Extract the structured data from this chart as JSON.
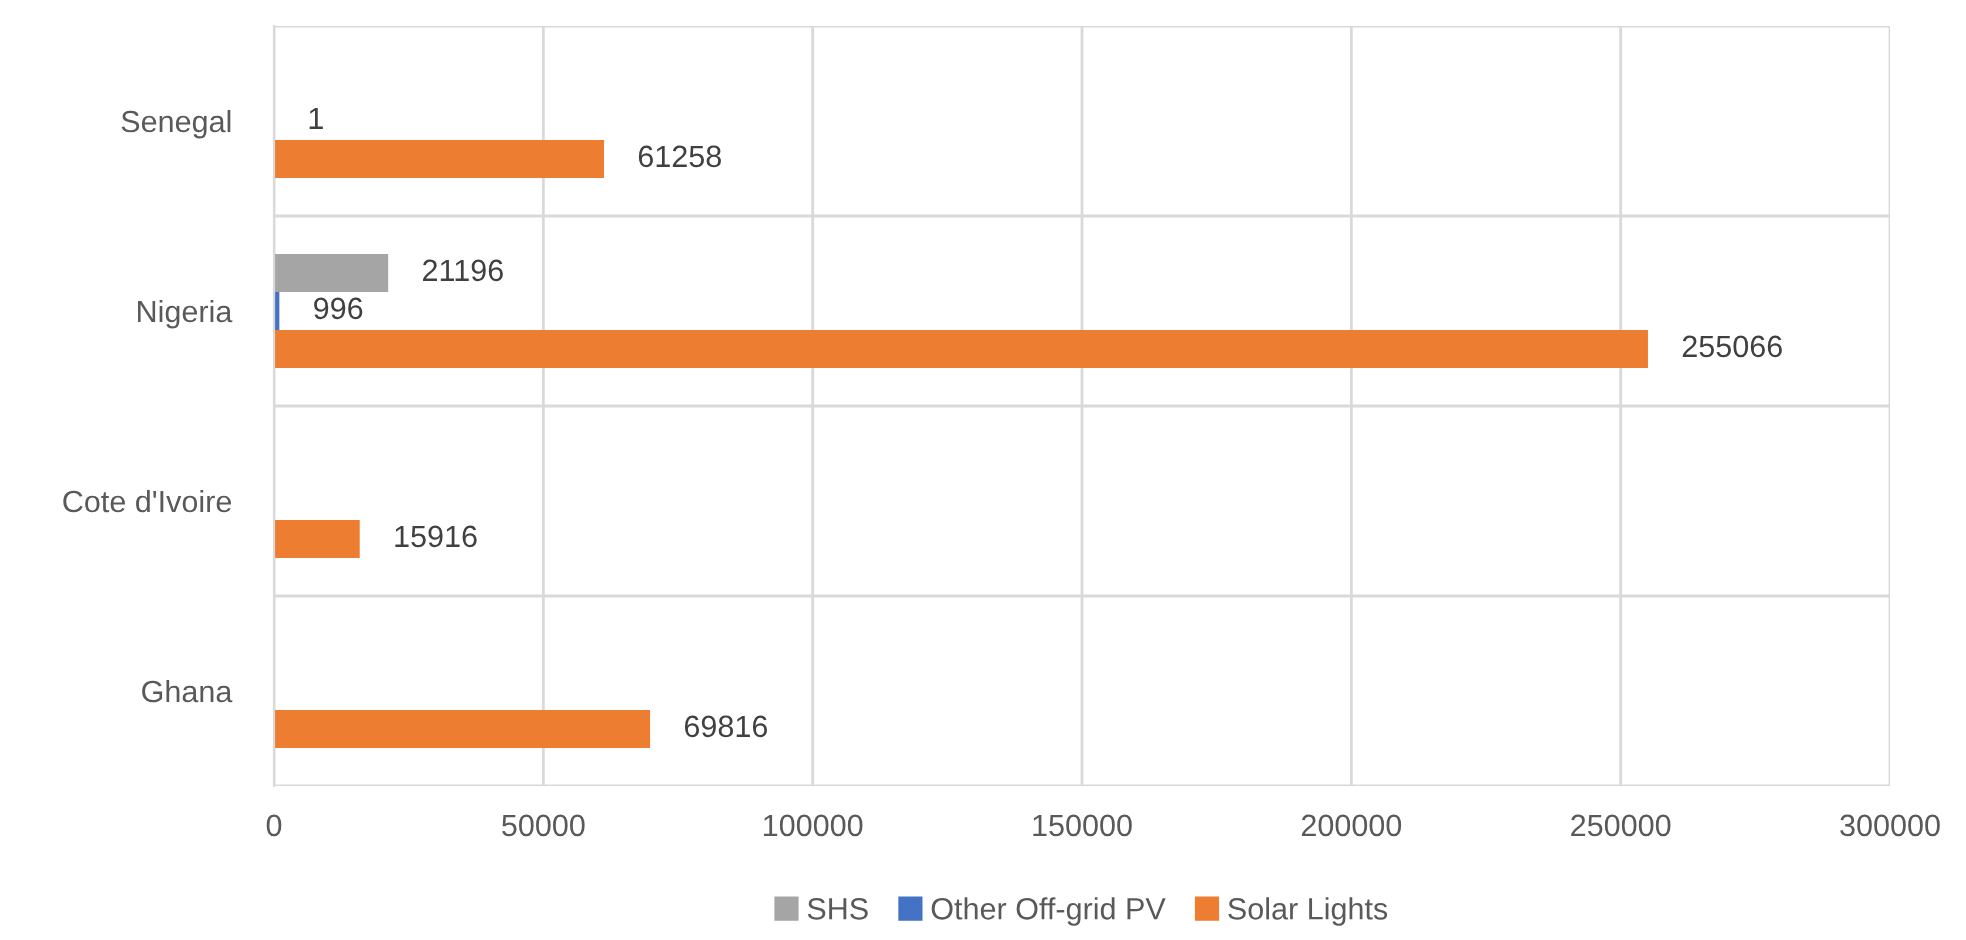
{
  "chart_data": {
    "type": "bar",
    "orientation": "horizontal",
    "categories": [
      "Senegal",
      "Nigeria",
      "Cote d'Ivoire",
      "Ghana"
    ],
    "series": [
      {
        "name": "SHS",
        "color": "#a5a5a5",
        "values": [
          null,
          21196,
          null,
          null
        ]
      },
      {
        "name": "Other Off-grid PV",
        "color": "#4472c4",
        "values": [
          1,
          996,
          null,
          null
        ]
      },
      {
        "name": "Solar Lights",
        "color": "#ed7d31",
        "values": [
          61258,
          255066,
          15916,
          69816
        ]
      }
    ],
    "xlim": [
      0,
      300000
    ],
    "xticks": [
      0,
      50000,
      100000,
      150000,
      200000,
      250000,
      300000
    ],
    "grid": true,
    "legend": "bottom",
    "data_labels": true
  }
}
